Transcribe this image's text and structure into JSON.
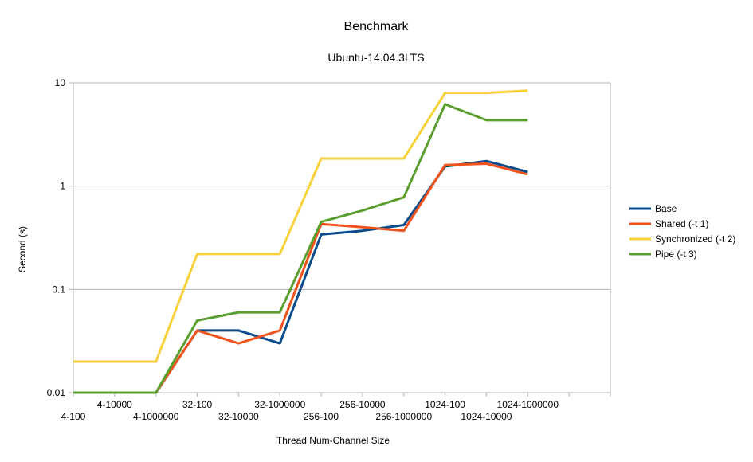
{
  "chart_data": {
    "type": "line",
    "title": "Benchmark",
    "subtitle": "Ubuntu-14.04.3LTS",
    "xlabel": "Thread Num-Channel Size",
    "ylabel": "Second (s)",
    "yscale": "log",
    "ylim": [
      0.01,
      10
    ],
    "yticks": [
      "0.01",
      "0.1",
      "1",
      "10"
    ],
    "grid": "horizontal",
    "legend_position": "right",
    "categories": [
      "4-100",
      "4-10000",
      "4-1000000",
      "32-100",
      "32-10000",
      "32-1000000",
      "256-100",
      "256-10000",
      "256-1000000",
      "1024-100",
      "1024-10000",
      "1024-1000000"
    ],
    "series": [
      {
        "name": "Base",
        "color": "#0b4a8b",
        "values": [
          0.01,
          0.01,
          0.01,
          0.04,
          0.04,
          0.03,
          0.34,
          0.37,
          0.42,
          1.55,
          1.75,
          1.37
        ]
      },
      {
        "name": "Shared (-t 1)",
        "color": "#f0521c",
        "values": [
          0.01,
          0.01,
          0.01,
          0.04,
          0.03,
          0.04,
          0.43,
          0.4,
          0.37,
          1.6,
          1.65,
          1.3
        ]
      },
      {
        "name": "Synchronized (-t 2)",
        "color": "#f7d23b",
        "values": [
          0.02,
          0.02,
          0.02,
          0.22,
          0.22,
          0.22,
          1.85,
          1.85,
          1.85,
          8.0,
          8.0,
          8.4
        ]
      },
      {
        "name": "Pipe (-t 3)",
        "color": "#5a9e2f",
        "values": [
          0.01,
          0.01,
          0.01,
          0.05,
          0.06,
          0.06,
          0.45,
          0.58,
          0.78,
          6.2,
          4.35,
          4.35
        ]
      }
    ]
  }
}
